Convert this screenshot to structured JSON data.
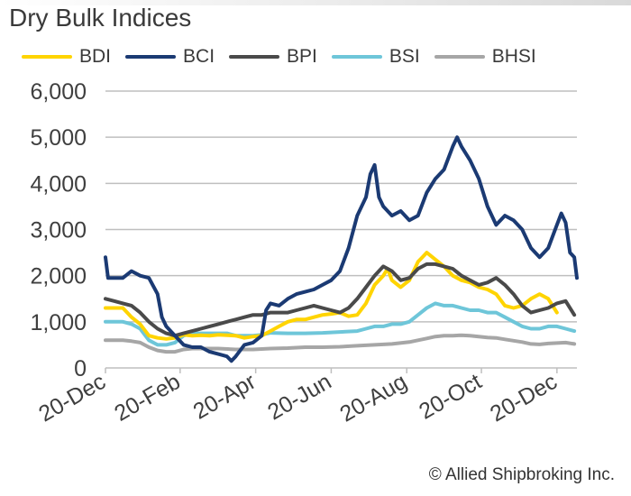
{
  "chart_data": {
    "type": "line",
    "title": "Dry Bulk Indices",
    "xlabel": "",
    "ylabel": "",
    "ylim": [
      0,
      6000
    ],
    "yticks": [
      0,
      1000,
      2000,
      3000,
      4000,
      5000,
      6000
    ],
    "ytick_labels": [
      "0",
      "1,000",
      "2,000",
      "3,000",
      "4,000",
      "5,000",
      "6,000"
    ],
    "x_categories": [
      "20-Dec",
      "20-Feb",
      "20-Apr",
      "20-Jun",
      "20-Aug",
      "20-Oct",
      "20-Dec"
    ],
    "x_unit": "week index (0 = 20-Dec start, 52 = 20-Dec end)",
    "x_tick_positions": [
      0,
      8.6,
      17.3,
      26,
      34.7,
      43.3,
      52
    ],
    "grid": true,
    "legend_position": "top",
    "series": [
      {
        "name": "BDI",
        "color": "#FFD400",
        "points": [
          [
            0,
            1300
          ],
          [
            2,
            1300
          ],
          [
            3,
            1100
          ],
          [
            4,
            950
          ],
          [
            5,
            700
          ],
          [
            6,
            650
          ],
          [
            7,
            630
          ],
          [
            8,
            650
          ],
          [
            9,
            720
          ],
          [
            10,
            700
          ],
          [
            11,
            710
          ],
          [
            12,
            700
          ],
          [
            13,
            720
          ],
          [
            15,
            700
          ],
          [
            16,
            650
          ],
          [
            17,
            680
          ],
          [
            18,
            700
          ],
          [
            19,
            800
          ],
          [
            20,
            900
          ],
          [
            21,
            1000
          ],
          [
            22,
            1050
          ],
          [
            23,
            1050
          ],
          [
            24,
            1100
          ],
          [
            25,
            1150
          ],
          [
            26,
            1170
          ],
          [
            27,
            1200
          ],
          [
            28,
            1120
          ],
          [
            29,
            1150
          ],
          [
            30,
            1400
          ],
          [
            31,
            1800
          ],
          [
            32,
            2000
          ],
          [
            32.5,
            2150
          ],
          [
            33,
            1900
          ],
          [
            34,
            1750
          ],
          [
            35,
            1900
          ],
          [
            36,
            2300
          ],
          [
            36.5,
            2400
          ],
          [
            37,
            2500
          ],
          [
            38,
            2350
          ],
          [
            39,
            2200
          ],
          [
            40,
            2000
          ],
          [
            41,
            1900
          ],
          [
            42,
            1850
          ],
          [
            43,
            1750
          ],
          [
            44,
            1700
          ],
          [
            45,
            1600
          ],
          [
            46,
            1350
          ],
          [
            47,
            1300
          ],
          [
            48,
            1350
          ],
          [
            49,
            1500
          ],
          [
            50,
            1600
          ],
          [
            51,
            1500
          ],
          [
            52,
            1200
          ]
        ]
      },
      {
        "name": "BCI",
        "color": "#1B3A73",
        "points": [
          [
            0,
            2400
          ],
          [
            0.3,
            1950
          ],
          [
            1,
            1950
          ],
          [
            2,
            1950
          ],
          [
            3,
            2100
          ],
          [
            4,
            2000
          ],
          [
            5,
            1950
          ],
          [
            6,
            1600
          ],
          [
            6.5,
            1100
          ],
          [
            7,
            900
          ],
          [
            8,
            700
          ],
          [
            9,
            500
          ],
          [
            10,
            450
          ],
          [
            11,
            450
          ],
          [
            12,
            350
          ],
          [
            13,
            300
          ],
          [
            14,
            250
          ],
          [
            14.5,
            150
          ],
          [
            15,
            250
          ],
          [
            16,
            500
          ],
          [
            17,
            550
          ],
          [
            18,
            700
          ],
          [
            18.5,
            1250
          ],
          [
            19,
            1400
          ],
          [
            20,
            1350
          ],
          [
            21,
            1500
          ],
          [
            22,
            1600
          ],
          [
            23,
            1650
          ],
          [
            24,
            1700
          ],
          [
            25,
            1800
          ],
          [
            26,
            1900
          ],
          [
            27,
            2100
          ],
          [
            28,
            2600
          ],
          [
            29,
            3300
          ],
          [
            30,
            3700
          ],
          [
            30.5,
            4200
          ],
          [
            31,
            4400
          ],
          [
            31.5,
            3700
          ],
          [
            32,
            3500
          ],
          [
            33,
            3300
          ],
          [
            34,
            3400
          ],
          [
            35,
            3200
          ],
          [
            36,
            3300
          ],
          [
            37,
            3800
          ],
          [
            38,
            4100
          ],
          [
            39,
            4300
          ],
          [
            40,
            4800
          ],
          [
            40.5,
            5000
          ],
          [
            41,
            4800
          ],
          [
            42,
            4500
          ],
          [
            43,
            4100
          ],
          [
            44,
            3500
          ],
          [
            45,
            3100
          ],
          [
            46,
            3300
          ],
          [
            47,
            3200
          ],
          [
            48,
            3000
          ],
          [
            49,
            2600
          ],
          [
            50,
            2400
          ],
          [
            51,
            2600
          ],
          [
            52,
            3100
          ],
          [
            52.5,
            3350
          ],
          [
            53,
            3150
          ],
          [
            53.5,
            2500
          ],
          [
            54,
            2400
          ],
          [
            54.3,
            1950
          ]
        ]
      },
      {
        "name": "BPI",
        "color": "#4A4A4A",
        "points": [
          [
            0,
            1500
          ],
          [
            1,
            1450
          ],
          [
            2,
            1400
          ],
          [
            3,
            1350
          ],
          [
            4,
            1200
          ],
          [
            5,
            1000
          ],
          [
            6,
            850
          ],
          [
            7,
            750
          ],
          [
            8,
            700
          ],
          [
            9,
            750
          ],
          [
            10,
            800
          ],
          [
            11,
            850
          ],
          [
            12,
            900
          ],
          [
            13,
            950
          ],
          [
            14,
            1000
          ],
          [
            15,
            1050
          ],
          [
            16,
            1100
          ],
          [
            17,
            1150
          ],
          [
            18,
            1150
          ],
          [
            19,
            1200
          ],
          [
            20,
            1200
          ],
          [
            21,
            1200
          ],
          [
            22,
            1250
          ],
          [
            23,
            1300
          ],
          [
            24,
            1350
          ],
          [
            25,
            1300
          ],
          [
            26,
            1250
          ],
          [
            27,
            1200
          ],
          [
            28,
            1300
          ],
          [
            29,
            1500
          ],
          [
            30,
            1750
          ],
          [
            31,
            2000
          ],
          [
            32,
            2200
          ],
          [
            33,
            2100
          ],
          [
            34,
            1900
          ],
          [
            35,
            1950
          ],
          [
            36,
            2150
          ],
          [
            37,
            2250
          ],
          [
            38,
            2250
          ],
          [
            39,
            2200
          ],
          [
            40,
            2150
          ],
          [
            41,
            2000
          ],
          [
            42,
            1900
          ],
          [
            43,
            1800
          ],
          [
            44,
            1850
          ],
          [
            45,
            1950
          ],
          [
            46,
            1800
          ],
          [
            47,
            1600
          ],
          [
            48,
            1350
          ],
          [
            49,
            1200
          ],
          [
            50,
            1250
          ],
          [
            51,
            1300
          ],
          [
            52,
            1400
          ],
          [
            53,
            1450
          ],
          [
            54,
            1150
          ]
        ]
      },
      {
        "name": "BSI",
        "color": "#6EC6D9",
        "points": [
          [
            0,
            1000
          ],
          [
            2,
            1000
          ],
          [
            3,
            950
          ],
          [
            4,
            850
          ],
          [
            5,
            600
          ],
          [
            6,
            500
          ],
          [
            7,
            500
          ],
          [
            8,
            550
          ],
          [
            9,
            700
          ],
          [
            10,
            750
          ],
          [
            11,
            750
          ],
          [
            12,
            750
          ],
          [
            14,
            750
          ],
          [
            15,
            700
          ],
          [
            16,
            700
          ],
          [
            17,
            700
          ],
          [
            18,
            720
          ],
          [
            19,
            760
          ],
          [
            21,
            750
          ],
          [
            23,
            750
          ],
          [
            25,
            760
          ],
          [
            27,
            780
          ],
          [
            29,
            800
          ],
          [
            30,
            850
          ],
          [
            31,
            900
          ],
          [
            32,
            900
          ],
          [
            33,
            950
          ],
          [
            34,
            950
          ],
          [
            35,
            1000
          ],
          [
            36,
            1150
          ],
          [
            37,
            1300
          ],
          [
            38,
            1400
          ],
          [
            39,
            1350
          ],
          [
            40,
            1350
          ],
          [
            41,
            1300
          ],
          [
            42,
            1250
          ],
          [
            43,
            1250
          ],
          [
            44,
            1200
          ],
          [
            45,
            1200
          ],
          [
            46,
            1100
          ],
          [
            47,
            1000
          ],
          [
            48,
            900
          ],
          [
            49,
            850
          ],
          [
            50,
            850
          ],
          [
            51,
            900
          ],
          [
            52,
            900
          ],
          [
            53,
            850
          ],
          [
            54,
            800
          ]
        ]
      },
      {
        "name": "BHSI",
        "color": "#A6A6A6",
        "points": [
          [
            0,
            600
          ],
          [
            2,
            600
          ],
          [
            3,
            580
          ],
          [
            4,
            550
          ],
          [
            5,
            450
          ],
          [
            6,
            380
          ],
          [
            7,
            350
          ],
          [
            8,
            350
          ],
          [
            9,
            400
          ],
          [
            10,
            420
          ],
          [
            11,
            420
          ],
          [
            13,
            420
          ],
          [
            15,
            400
          ],
          [
            17,
            400
          ],
          [
            19,
            420
          ],
          [
            21,
            430
          ],
          [
            23,
            450
          ],
          [
            25,
            450
          ],
          [
            27,
            460
          ],
          [
            29,
            480
          ],
          [
            31,
            500
          ],
          [
            33,
            520
          ],
          [
            35,
            560
          ],
          [
            37,
            640
          ],
          [
            38,
            680
          ],
          [
            39,
            700
          ],
          [
            40,
            700
          ],
          [
            41,
            710
          ],
          [
            42,
            700
          ],
          [
            43,
            680
          ],
          [
            44,
            660
          ],
          [
            45,
            650
          ],
          [
            46,
            620
          ],
          [
            47,
            590
          ],
          [
            48,
            560
          ],
          [
            49,
            520
          ],
          [
            50,
            510
          ],
          [
            51,
            530
          ],
          [
            52,
            540
          ],
          [
            53,
            550
          ],
          [
            54,
            520
          ]
        ]
      }
    ]
  },
  "footer": {
    "copyright": "© Allied Shipbroking Inc."
  }
}
